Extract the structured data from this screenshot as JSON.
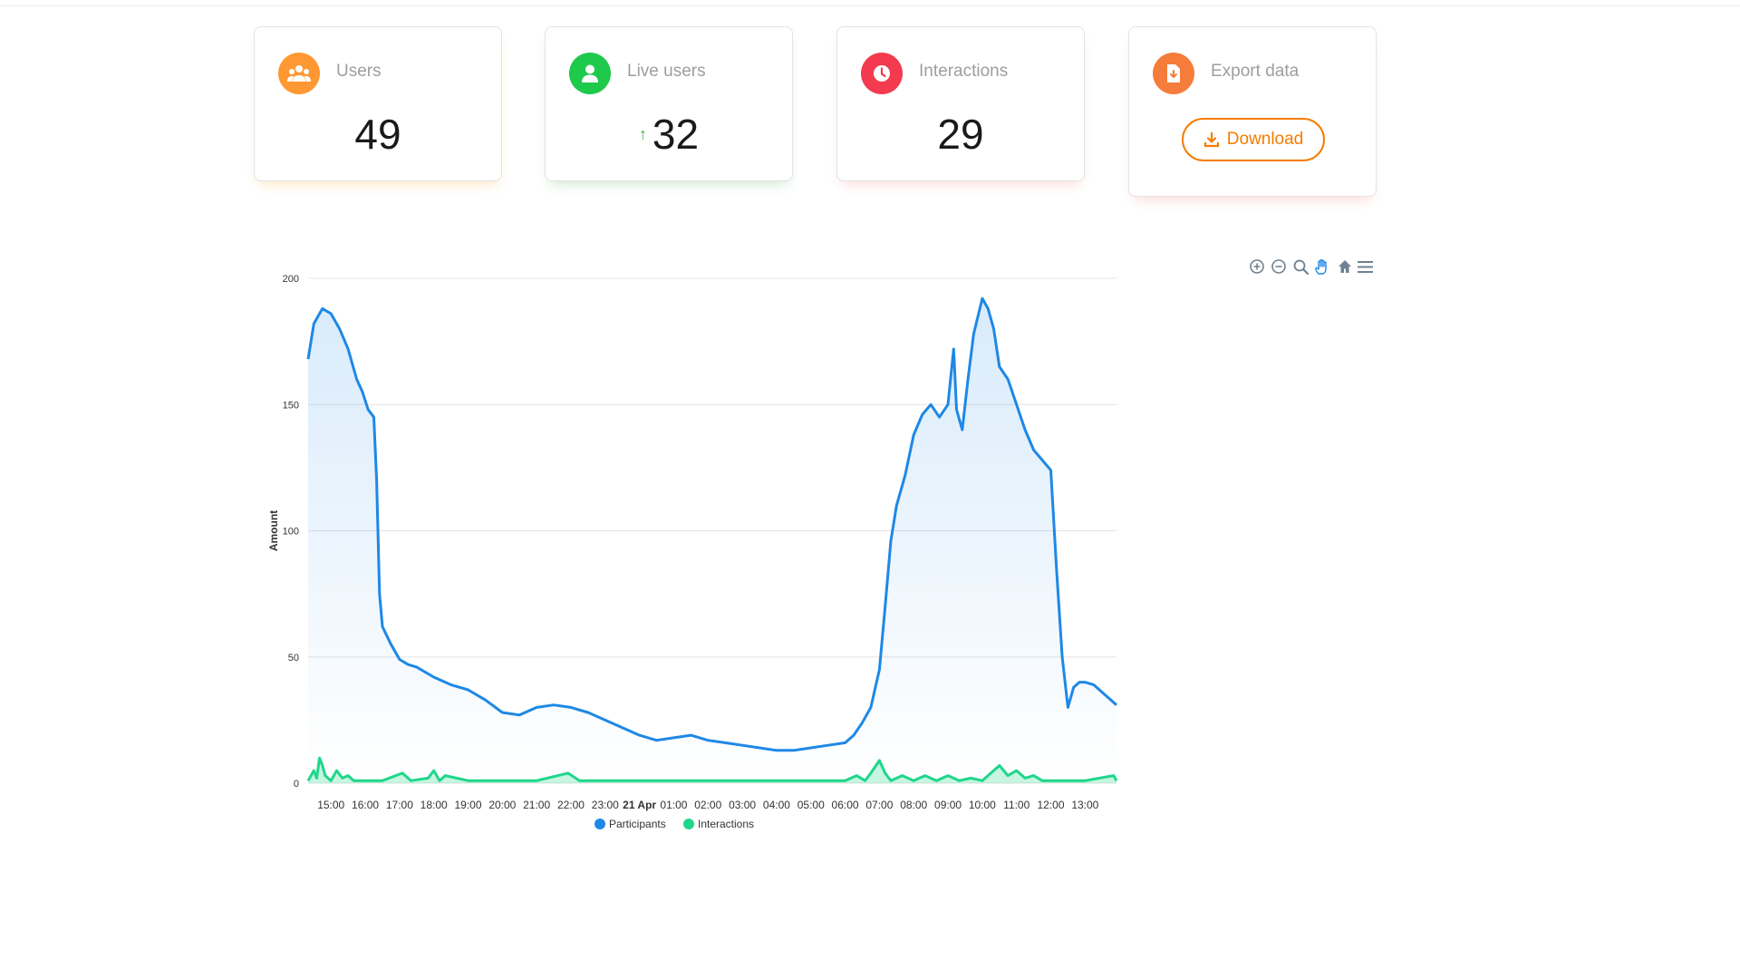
{
  "stats": [
    {
      "label": "Users",
      "value": "49",
      "icon": "group-icon",
      "color": "#ff9832"
    },
    {
      "label": "Live users",
      "value": "32",
      "icon": "user-icon",
      "color": "#1ec94c",
      "trend": "↑"
    },
    {
      "label": "Interactions",
      "value": "29",
      "icon": "clock-icon",
      "color": "#f43a4e"
    },
    {
      "label": "Export data",
      "icon": "file-download-icon",
      "color": "#f57c3a",
      "button_label": "Download"
    }
  ],
  "toolbar": [
    "zoom-in-icon",
    "zoom-out-icon",
    "magnifier-icon",
    "pan-hand-icon",
    "home-icon",
    "menu-icon"
  ],
  "chart_data": {
    "type": "area",
    "ylabel": "Amount",
    "ylim": [
      0,
      200
    ],
    "yticks": [
      0,
      50,
      100,
      150,
      200
    ],
    "xlim": [
      "20 Apr 14:20",
      "21 Apr 13:55"
    ],
    "xtick_labels": [
      "15:00",
      "16:00",
      "17:00",
      "18:00",
      "19:00",
      "20:00",
      "21:00",
      "22:00",
      "23:00",
      "21 Apr",
      "01:00",
      "02:00",
      "03:00",
      "04:00",
      "05:00",
      "06:00",
      "07:00",
      "08:00",
      "09:00",
      "10:00",
      "11:00",
      "12:00",
      "13:00"
    ],
    "grid": true,
    "legend_position": "bottom",
    "series": [
      {
        "name": "Participants",
        "color": "#1e88e5",
        "x": [
          "20 Apr 14:20",
          "20 Apr 14:30",
          "20 Apr 14:45",
          "20 Apr 15:00",
          "20 Apr 15:15",
          "20 Apr 15:30",
          "20 Apr 15:45",
          "20 Apr 15:55",
          "20 Apr 16:05",
          "20 Apr 16:15",
          "20 Apr 16:20",
          "20 Apr 16:25",
          "20 Apr 16:30",
          "20 Apr 16:45",
          "20 Apr 17:00",
          "20 Apr 17:15",
          "20 Apr 17:30",
          "20 Apr 18:00",
          "20 Apr 18:30",
          "20 Apr 19:00",
          "20 Apr 19:30",
          "20 Apr 20:00",
          "20 Apr 20:30",
          "20 Apr 21:00",
          "20 Apr 21:30",
          "20 Apr 22:00",
          "20 Apr 22:30",
          "20 Apr 23:00",
          "20 Apr 23:30",
          "21 Apr 00:00",
          "21 Apr 00:30",
          "21 Apr 01:00",
          "21 Apr 01:30",
          "21 Apr 02:00",
          "21 Apr 02:30",
          "21 Apr 03:00",
          "21 Apr 03:30",
          "21 Apr 04:00",
          "21 Apr 04:30",
          "21 Apr 05:00",
          "21 Apr 05:30",
          "21 Apr 06:00",
          "21 Apr 06:15",
          "21 Apr 06:30",
          "21 Apr 06:45",
          "21 Apr 07:00",
          "21 Apr 07:10",
          "21 Apr 07:20",
          "21 Apr 07:30",
          "21 Apr 07:45",
          "21 Apr 08:00",
          "21 Apr 08:15",
          "21 Apr 08:30",
          "21 Apr 08:45",
          "21 Apr 09:00",
          "21 Apr 09:10",
          "21 Apr 09:15",
          "21 Apr 09:25",
          "21 Apr 09:35",
          "21 Apr 09:45",
          "21 Apr 10:00",
          "21 Apr 10:10",
          "21 Apr 10:20",
          "21 Apr 10:30",
          "21 Apr 10:45",
          "21 Apr 11:00",
          "21 Apr 11:15",
          "21 Apr 11:30",
          "21 Apr 11:45",
          "21 Apr 12:00",
          "21 Apr 12:10",
          "21 Apr 12:20",
          "21 Apr 12:30",
          "21 Apr 12:40",
          "21 Apr 12:50",
          "21 Apr 13:00",
          "21 Apr 13:15",
          "21 Apr 13:30",
          "21 Apr 13:45",
          "21 Apr 13:55"
        ],
        "values": [
          168,
          182,
          188,
          186,
          180,
          172,
          160,
          155,
          148,
          145,
          120,
          75,
          62,
          55,
          49,
          47,
          46,
          42,
          39,
          37,
          33,
          28,
          27,
          30,
          31,
          30,
          28,
          25,
          22,
          19,
          17,
          18,
          19,
          17,
          16,
          15,
          14,
          13,
          13,
          14,
          15,
          16,
          19,
          24,
          30,
          45,
          70,
          96,
          110,
          122,
          138,
          146,
          150,
          145,
          150,
          172,
          148,
          140,
          160,
          178,
          192,
          188,
          180,
          165,
          160,
          150,
          140,
          132,
          128,
          124,
          85,
          50,
          30,
          38,
          40,
          40,
          39,
          36,
          33,
          31
        ]
      },
      {
        "name": "Interactions",
        "color": "#1fd68b",
        "x": [
          "20 Apr 14:20",
          "20 Apr 14:30",
          "20 Apr 14:35",
          "20 Apr 14:40",
          "20 Apr 14:45",
          "20 Apr 14:50",
          "20 Apr 15:00",
          "20 Apr 15:10",
          "20 Apr 15:20",
          "20 Apr 15:30",
          "20 Apr 15:40",
          "20 Apr 16:00",
          "20 Apr 16:30",
          "20 Apr 17:05",
          "20 Apr 17:20",
          "20 Apr 17:50",
          "20 Apr 18:00",
          "20 Apr 18:10",
          "20 Apr 18:20",
          "20 Apr 19:00",
          "20 Apr 20:00",
          "20 Apr 21:00",
          "20 Apr 21:55",
          "20 Apr 22:15",
          "20 Apr 23:00",
          "21 Apr 00:00",
          "21 Apr 02:00",
          "21 Apr 04:00",
          "21 Apr 06:00",
          "21 Apr 06:20",
          "21 Apr 06:35",
          "21 Apr 06:45",
          "21 Apr 07:00",
          "21 Apr 07:10",
          "21 Apr 07:20",
          "21 Apr 07:40",
          "21 Apr 08:00",
          "21 Apr 08:20",
          "21 Apr 08:40",
          "21 Apr 09:00",
          "21 Apr 09:20",
          "21 Apr 09:40",
          "21 Apr 10:00",
          "21 Apr 10:15",
          "21 Apr 10:30",
          "21 Apr 10:45",
          "21 Apr 11:00",
          "21 Apr 11:15",
          "21 Apr 11:30",
          "21 Apr 11:45",
          "21 Apr 12:00",
          "21 Apr 13:00",
          "21 Apr 13:50",
          "21 Apr 13:55"
        ],
        "values": [
          1,
          5,
          2,
          10,
          7,
          3,
          1,
          5,
          2,
          3,
          1,
          1,
          1,
          4,
          1,
          2,
          5,
          1,
          3,
          1,
          1,
          1,
          4,
          1,
          1,
          1,
          1,
          1,
          1,
          3,
          1,
          4,
          9,
          4,
          1,
          3,
          1,
          3,
          1,
          3,
          1,
          2,
          1,
          4,
          7,
          3,
          5,
          2,
          3,
          1,
          1,
          1,
          3,
          1
        ]
      }
    ]
  }
}
